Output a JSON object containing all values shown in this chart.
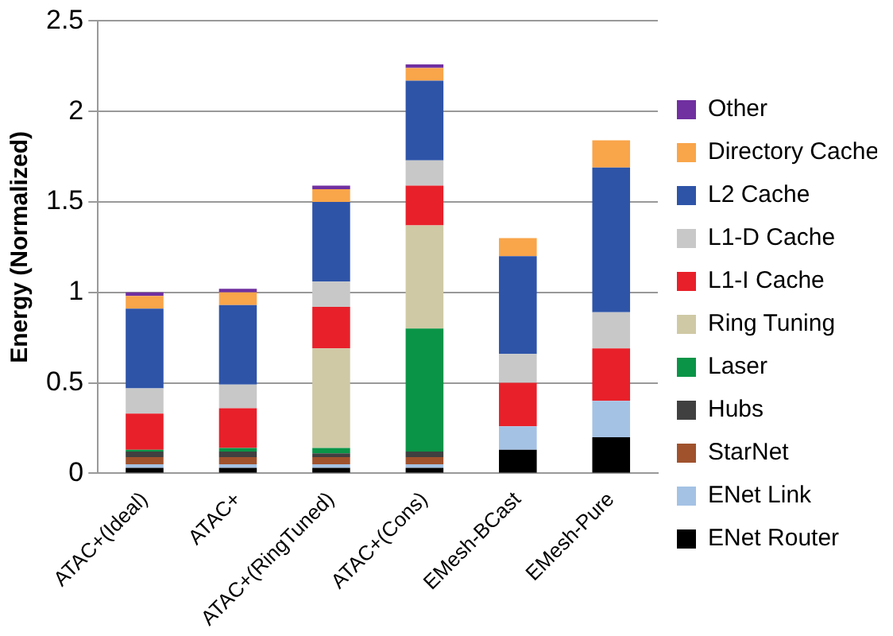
{
  "chart_data": {
    "type": "bar",
    "stacked": true,
    "ylabel": "Energy (Normalized)",
    "categories": [
      "ATAC+(Ideal)",
      "ATAC+",
      "ATAC+(RingTuned)",
      "ATAC+(Cons)",
      "EMesh-BCast",
      "EMesh-Pure"
    ],
    "series": [
      {
        "name": "ENet Router",
        "color": "#000000",
        "values": [
          0.03,
          0.03,
          0.03,
          0.03,
          0.13,
          0.2
        ]
      },
      {
        "name": "ENet Link",
        "color": "#a4c2e4",
        "values": [
          0.02,
          0.02,
          0.02,
          0.02,
          0.13,
          0.2
        ]
      },
      {
        "name": "StarNet",
        "color": "#a0522d",
        "values": [
          0.04,
          0.04,
          0.04,
          0.04,
          0,
          0
        ]
      },
      {
        "name": "Hubs",
        "color": "#404040",
        "values": [
          0.03,
          0.03,
          0.02,
          0.03,
          0,
          0
        ]
      },
      {
        "name": "Laser",
        "color": "#0a9447",
        "values": [
          0.01,
          0.02,
          0.03,
          0.68,
          0,
          0
        ]
      },
      {
        "name": "Ring Tuning",
        "color": "#cfc9a5",
        "values": [
          0,
          0,
          0.55,
          0.57,
          0,
          0
        ]
      },
      {
        "name": "L1-I Cache",
        "color": "#e8202a",
        "values": [
          0.2,
          0.22,
          0.23,
          0.22,
          0.24,
          0.29
        ]
      },
      {
        "name": "L1-D Cache",
        "color": "#c8c8c8",
        "values": [
          0.14,
          0.13,
          0.14,
          0.14,
          0.16,
          0.2
        ]
      },
      {
        "name": "L2 Cache",
        "color": "#2e54a8",
        "values": [
          0.44,
          0.44,
          0.44,
          0.44,
          0.54,
          0.8
        ]
      },
      {
        "name": "Directory Cache",
        "color": "#f9a54a",
        "values": [
          0.07,
          0.07,
          0.07,
          0.07,
          0.1,
          0.15
        ]
      },
      {
        "name": "Other",
        "color": "#7030a0",
        "values": [
          0.02,
          0.02,
          0.02,
          0.02,
          0,
          0
        ]
      }
    ],
    "ylim": [
      0,
      2.5
    ],
    "yticks": [
      0,
      0.5,
      1,
      1.5,
      2,
      2.5
    ],
    "grid": "y",
    "legend": "right"
  }
}
